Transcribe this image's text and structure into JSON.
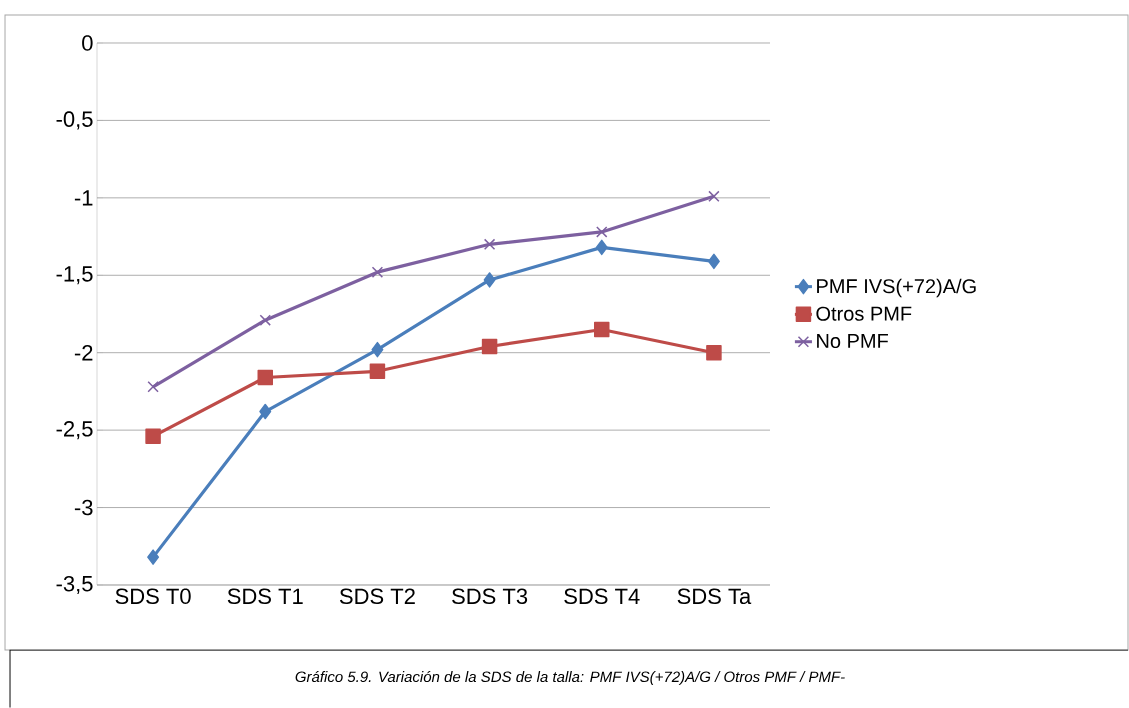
{
  "chart_data": {
    "type": "line",
    "categories": [
      "SDS T0",
      "SDS T1",
      "SDS T2",
      "SDS T3",
      "SDS T4",
      "SDS Ta"
    ],
    "series": [
      {
        "name": "PMF IVS(+72)A/G",
        "color": "#4a7ebb",
        "marker": "diamond",
        "values": [
          -3.32,
          -2.38,
          -1.98,
          -1.53,
          -1.32,
          -1.41
        ]
      },
      {
        "name": "Otros PMF",
        "color": "#be4b48",
        "marker": "square",
        "values": [
          -2.54,
          -2.16,
          -2.12,
          -1.96,
          -1.85,
          -2.0
        ]
      },
      {
        "name": "No PMF",
        "color": "#7d60a0",
        "marker": "cross",
        "values": [
          -2.22,
          -1.79,
          -1.48,
          -1.3,
          -1.22,
          -0.99
        ]
      }
    ],
    "ylim": [
      -3.5,
      0
    ],
    "yticks": [
      {
        "value": -3.5,
        "label": "-3,5"
      },
      {
        "value": -3,
        "label": "-3"
      },
      {
        "value": -2.5,
        "label": "-2,5"
      },
      {
        "value": -2,
        "label": "-2"
      },
      {
        "value": -1.5,
        "label": "-1,5"
      },
      {
        "value": -1,
        "label": "-1"
      },
      {
        "value": -0.5,
        "label": "-0,5"
      },
      {
        "value": 0,
        "label": "0"
      }
    ],
    "grid": "y",
    "legend": "right",
    "line_style": "solid",
    "annotations": [
      "Gráfico 5.9. Variación de la SDS de la talla: PMF IVS(+72)A/G / Otros PMF / PMF-"
    ]
  }
}
